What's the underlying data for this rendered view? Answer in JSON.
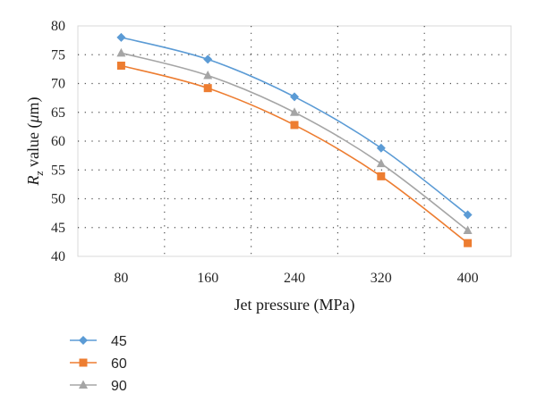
{
  "chart_data": {
    "type": "line",
    "xlabel": "Jet pressure (MPa)",
    "ylabel": {
      "base": "R",
      "sub": "z",
      "mid": " value (",
      "unit_italic": "μ",
      "unit_rest": "m)"
    },
    "categories": [
      "80",
      "160",
      "240",
      "320",
      "400"
    ],
    "x": [
      80,
      160,
      240,
      320,
      400
    ],
    "ylim": [
      40,
      80
    ],
    "yticks": [
      40,
      45,
      50,
      55,
      60,
      65,
      70,
      75,
      80
    ],
    "grid": true,
    "legend_position": "bottom-left",
    "series": [
      {
        "name": "45",
        "color": "#5b9bd5",
        "marker": "diamond",
        "values": [
          78.0,
          74.2,
          67.7,
          58.8,
          47.2
        ]
      },
      {
        "name": "60",
        "color": "#ed7d31",
        "marker": "square",
        "values": [
          73.1,
          69.2,
          62.8,
          53.9,
          42.3
        ]
      },
      {
        "name": "90",
        "color": "#a5a5a5",
        "marker": "triangle",
        "values": [
          75.3,
          71.4,
          65.0,
          56.1,
          44.5
        ]
      }
    ]
  }
}
